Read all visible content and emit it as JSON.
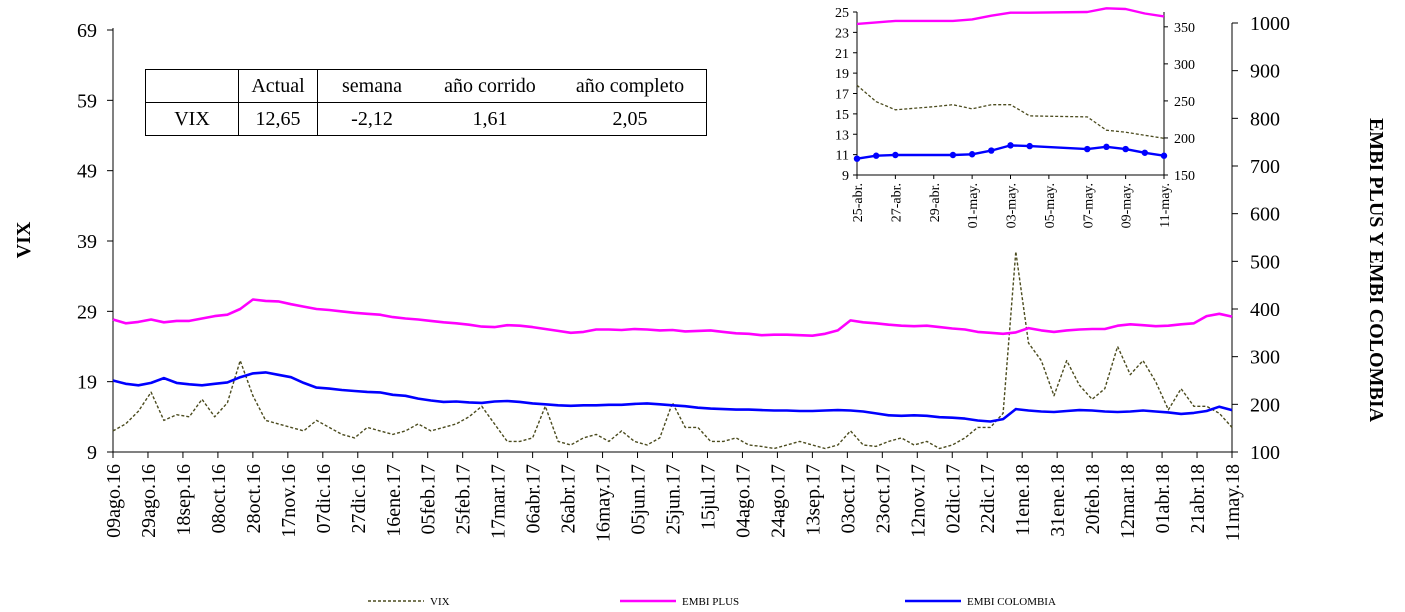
{
  "chart_data": [
    {
      "type": "line",
      "y_left_label": "VIX",
      "y_right_label": "EMBI PLUS Y EMBI COLOMBIA",
      "y_left_ticks": [
        "69",
        "59",
        "49",
        "39",
        "29",
        "19",
        "9"
      ],
      "y_left_lim": [
        9,
        69
      ],
      "y_right_ticks": [
        "1000",
        "900",
        "800",
        "700",
        "600",
        "500",
        "400",
        "300",
        "200",
        "100"
      ],
      "y_right_lim": [
        100,
        1000
      ],
      "x_ticks": [
        "09ago.16",
        "29ago.16",
        "18sep.16",
        "08oct.16",
        "28oct.16",
        "17nov.16",
        "07dic.16",
        "27dic.16",
        "16ene.17",
        "05feb.17",
        "25feb.17",
        "17mar.17",
        "06abr.17",
        "26abr.17",
        "16may.17",
        "05jun.17",
        "25jun.17",
        "15jul.17",
        "04ago.17",
        "24ago.17",
        "13sep.17",
        "03oct.17",
        "23oct.17",
        "12nov.17",
        "02dic.17",
        "22dic.17",
        "11ene.18",
        "31ene.18",
        "20feb.18",
        "12mar.18",
        "01abr.18",
        "21abr.18",
        "11may.18"
      ],
      "legend": [
        "VIX",
        "EMBI PLUS",
        "EMBI COLOMBIA"
      ],
      "legend_position": "bottom",
      "grid": false,
      "series": [
        {
          "name": "VIX",
          "axis": "left",
          "color": "#4b4b1e",
          "style": "dashed",
          "values": [
            12.0,
            13.0,
            14.8,
            17.5,
            13.5,
            14.3,
            14.0,
            16.5,
            14.0,
            16.0,
            22.0,
            17.0,
            13.5,
            13.0,
            12.5,
            12.0,
            13.5,
            12.5,
            11.5,
            11.0,
            12.5,
            12.0,
            11.5,
            12.0,
            13.0,
            12.0,
            12.5,
            13.0,
            14.0,
            15.5,
            13.0,
            10.5,
            10.5,
            11.0,
            15.5,
            10.5,
            10.0,
            11.0,
            11.5,
            10.5,
            12.0,
            10.5,
            10.0,
            11.0,
            16.0,
            12.5,
            12.5,
            10.5,
            10.5,
            11.0,
            10.0,
            9.8,
            9.5,
            10.0,
            10.5,
            10.0,
            9.5,
            10.0,
            12.0,
            10.0,
            9.8,
            10.5,
            11.0,
            10.0,
            10.5,
            9.5,
            10.0,
            11.0,
            12.5,
            12.5,
            14.5,
            37.5,
            24.5,
            22.0,
            17.0,
            22.0,
            18.5,
            16.5,
            18.0,
            24.0,
            20.0,
            22.0,
            19.0,
            15.0,
            18.0,
            15.5,
            15.5,
            14.5,
            12.5
          ]
        },
        {
          "name": "EMBI PLUS",
          "axis": "right",
          "color": "#ff00ff",
          "style": "solid",
          "values": [
            378,
            370,
            373,
            378,
            372,
            375,
            375,
            380,
            385,
            388,
            400,
            420,
            417,
            416,
            410,
            405,
            400,
            398,
            395,
            392,
            390,
            388,
            383,
            380,
            378,
            375,
            372,
            370,
            367,
            363,
            362,
            366,
            365,
            362,
            358,
            354,
            350,
            352,
            357,
            357,
            356,
            358,
            357,
            355,
            356,
            353,
            354,
            355,
            352,
            349,
            348,
            345,
            346,
            346,
            345,
            344,
            348,
            355,
            376,
            372,
            370,
            367,
            365,
            364,
            365,
            362,
            359,
            357,
            352,
            350,
            348,
            351,
            360,
            355,
            352,
            355,
            357,
            358,
            358,
            365,
            368,
            366,
            364,
            365,
            368,
            370,
            385,
            390,
            384
          ]
        },
        {
          "name": "EMBI COLOMBIA",
          "axis": "right",
          "color": "#0000ff",
          "style": "solid",
          "values": [
            250,
            243,
            240,
            245,
            255,
            245,
            242,
            240,
            243,
            246,
            257,
            265,
            267,
            262,
            257,
            245,
            235,
            233,
            230,
            228,
            226,
            225,
            220,
            218,
            212,
            208,
            205,
            206,
            204,
            203,
            206,
            207,
            205,
            202,
            200,
            198,
            197,
            198,
            198,
            199,
            199,
            201,
            202,
            200,
            198,
            196,
            193,
            191,
            190,
            189,
            189,
            188,
            187,
            187,
            186,
            186,
            187,
            188,
            187,
            185,
            181,
            177,
            176,
            177,
            176,
            173,
            172,
            170,
            166,
            164,
            169,
            190,
            187,
            185,
            184,
            186,
            188,
            187,
            185,
            184,
            185,
            187,
            185,
            183,
            180,
            182,
            186,
            195,
            188
          ]
        }
      ]
    },
    {
      "type": "line",
      "inset": true,
      "y_left_ticks": [
        "25",
        "23",
        "21",
        "19",
        "17",
        "15",
        "13",
        "11",
        "9"
      ],
      "y_left_lim": [
        9,
        25
      ],
      "y_right_ticks": [
        "350",
        "300",
        "250",
        "200",
        "150"
      ],
      "y_right_lim": [
        150,
        370
      ],
      "x_ticks": [
        "25-abr.",
        "27-abr.",
        "29-abr.",
        "01-may.",
        "03-may.",
        "05-may.",
        "07-may.",
        "09-may.",
        "11-may."
      ],
      "series": [
        {
          "name": "VIX",
          "axis": "left",
          "color": "#4b4b1e",
          "style": "dashed",
          "days": [
            0,
            1,
            2,
            4,
            5,
            6,
            7,
            8,
            9,
            12,
            13,
            14,
            15,
            16
          ],
          "values": [
            17.8,
            16.2,
            15.4,
            15.7,
            15.9,
            15.5,
            15.9,
            15.9,
            14.8,
            14.7,
            13.4,
            13.2,
            12.9,
            12.6
          ]
        },
        {
          "name": "EMBI PLUS",
          "axis": "right",
          "color": "#ff00ff",
          "style": "solid",
          "days": [
            0,
            1,
            2,
            5,
            6,
            7,
            8,
            9,
            12,
            13,
            14,
            15,
            16
          ],
          "values": [
            354,
            356,
            358,
            358,
            360,
            365,
            369,
            369,
            370,
            375,
            374,
            368,
            364
          ]
        },
        {
          "name": "EMBI COLOMBIA",
          "axis": "right",
          "color": "#0000ff",
          "style": "solid",
          "markers": true,
          "days": [
            0,
            1,
            2,
            5,
            6,
            7,
            8,
            9,
            12,
            13,
            14,
            15,
            16
          ],
          "values": [
            172,
            176,
            177,
            177,
            178,
            183,
            190,
            189,
            185,
            188,
            185,
            180,
            176
          ]
        }
      ]
    }
  ],
  "table": {
    "headers": [
      "",
      "Actual",
      "semana",
      "año corrido",
      "año completo"
    ],
    "row": [
      "VIX",
      "12,65",
      "-2,12",
      "1,61",
      "2,05"
    ]
  }
}
